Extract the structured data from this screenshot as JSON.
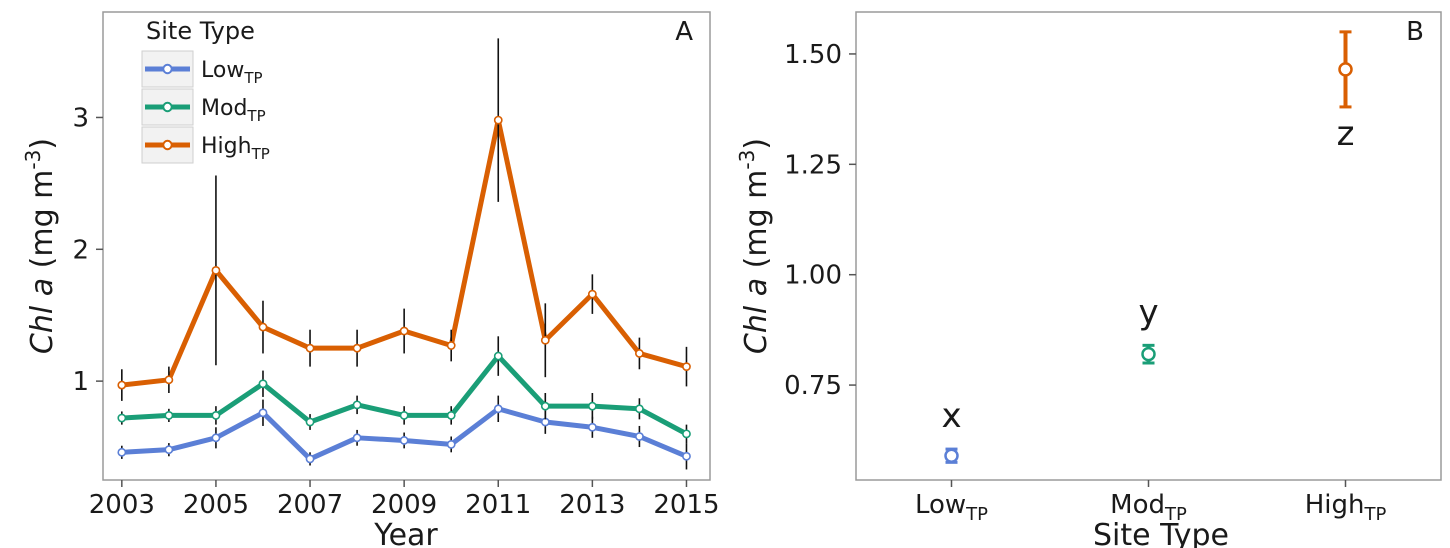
{
  "chart_data": [
    {
      "panel": "A",
      "type": "line",
      "xlabel": "Year",
      "ylabel": "Chl a (mg m-3)",
      "ylabel_parts": {
        "italic": "Chl a",
        "rest": " (mg m",
        "sup": "-3",
        "close": ")"
      },
      "x": [
        2003,
        2004,
        2005,
        2006,
        2007,
        2008,
        2009,
        2010,
        2011,
        2012,
        2013,
        2014,
        2015
      ],
      "xticks": [
        "2003",
        "2005",
        "2007",
        "2009",
        "2011",
        "2013",
        "2015"
      ],
      "yticks": [
        "1",
        "2",
        "3"
      ],
      "xlim": [
        2002.6,
        2015.5
      ],
      "ylim": [
        0.25,
        3.8
      ],
      "grid": false,
      "legend": {
        "title": "Site Type",
        "placement": "top-left",
        "entries": [
          {
            "base": "Low",
            "sub": "TP"
          },
          {
            "base": "Mod",
            "sub": "TP"
          },
          {
            "base": "High",
            "sub": "TP"
          }
        ]
      },
      "series": [
        {
          "name": "LowTP",
          "color": "#5b7fd6",
          "values": [
            0.46,
            0.48,
            0.57,
            0.76,
            0.41,
            0.57,
            0.55,
            0.52,
            0.79,
            0.69,
            0.65,
            0.58,
            0.43
          ],
          "errors": [
            0.05,
            0.05,
            0.08,
            0.1,
            0.05,
            0.06,
            0.06,
            0.06,
            0.1,
            0.09,
            0.08,
            0.08,
            0.1
          ]
        },
        {
          "name": "ModTP",
          "color": "#1a9e77",
          "values": [
            0.72,
            0.74,
            0.74,
            0.98,
            0.69,
            0.82,
            0.74,
            0.74,
            1.19,
            0.81,
            0.81,
            0.79,
            0.6
          ],
          "errors": [
            0.05,
            0.05,
            0.07,
            0.1,
            0.06,
            0.07,
            0.07,
            0.07,
            0.15,
            0.1,
            0.1,
            0.08,
            0.07
          ]
        },
        {
          "name": "HighTP",
          "color": "#d95f02",
          "values": [
            0.97,
            1.01,
            1.84,
            1.41,
            1.25,
            1.25,
            1.38,
            1.27,
            2.98,
            1.31,
            1.66,
            1.21,
            1.11
          ],
          "errors": [
            0.12,
            0.1,
            0.72,
            0.2,
            0.14,
            0.14,
            0.17,
            0.12,
            0.62,
            0.28,
            0.15,
            0.12,
            0.15
          ]
        }
      ],
      "tag": "A"
    },
    {
      "panel": "B",
      "type": "scatter",
      "xlabel": "Site Type",
      "ylabel": "Chl a (mg m-3)",
      "ylabel_parts": {
        "italic": "Chl a",
        "rest": " (mg m",
        "sup": "-3",
        "close": ")"
      },
      "categories": [
        {
          "base": "Low",
          "sub": "TP"
        },
        {
          "base": "Mod",
          "sub": "TP"
        },
        {
          "base": "High",
          "sub": "TP"
        }
      ],
      "values": [
        0.59,
        0.82,
        1.465
      ],
      "errors": [
        0.015,
        0.02,
        0.085
      ],
      "colors": [
        "#5b7fd6",
        "#1a9e77",
        "#d95f02"
      ],
      "letters": [
        "x",
        "y",
        "z"
      ],
      "yticks": [
        "0.75",
        "1.00",
        "1.25",
        "1.50"
      ],
      "ylim": [
        0.535,
        1.595
      ],
      "grid": false,
      "tag": "B"
    }
  ]
}
